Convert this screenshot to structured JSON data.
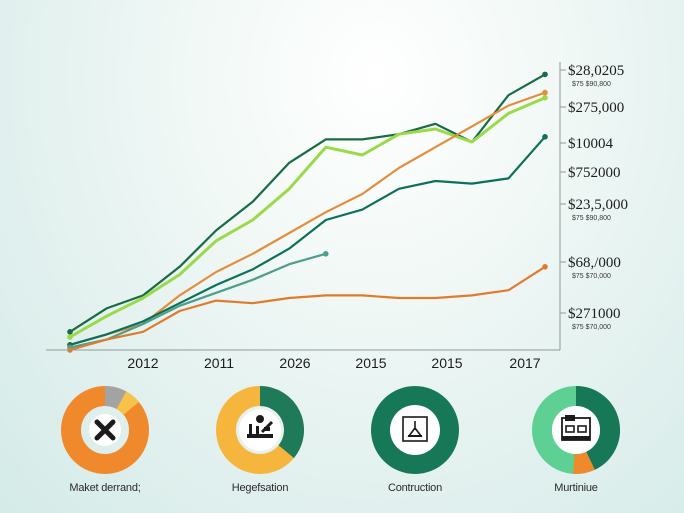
{
  "chart_data": {
    "type": "line",
    "x_tick_labels": [
      "2012",
      "2011",
      "2026",
      "2015",
      "2015",
      "2017"
    ],
    "y_tick_labels": [
      {
        "label": "$28,0205",
        "sub": "$75 $90,800"
      },
      {
        "label": "$275,000",
        "sub": ""
      },
      {
        "label": "$10004",
        "sub": ""
      },
      {
        "label": "$752000",
        "sub": ""
      },
      {
        "label": "$23,5,000",
        "sub": "$75 $90,800"
      },
      {
        "label": "$68,/000",
        "sub": "$75 $70,000"
      },
      {
        "label": "$271000",
        "sub": "$75 $70,000"
      }
    ],
    "ylim": [
      0,
      1
    ],
    "series": [
      {
        "color": "#176b45",
        "values": [
          0.07,
          0.16,
          0.21,
          0.32,
          0.46,
          0.57,
          0.72,
          0.81,
          0.81,
          0.83,
          0.87,
          0.8,
          0.98,
          1.06
        ]
      },
      {
        "color": "#9ad94a",
        "values": [
          0.05,
          0.13,
          0.2,
          0.29,
          0.42,
          0.5,
          0.62,
          0.78,
          0.75,
          0.83,
          0.85,
          0.8,
          0.91,
          0.97
        ]
      },
      {
        "color": "#e38e3c",
        "values": [
          0.02,
          0.06,
          0.1,
          0.21,
          0.3,
          0.37,
          0.45,
          0.53,
          0.6,
          0.7,
          0.78,
          0.86,
          0.94,
          0.99
        ]
      },
      {
        "color": "#0d7058",
        "values": [
          0.02,
          0.06,
          0.11,
          0.18,
          0.25,
          0.31,
          0.39,
          0.5,
          0.54,
          0.62,
          0.65,
          0.64,
          0.66,
          0.82
        ]
      },
      {
        "color": "#4e9e8b",
        "values": [
          0.01,
          0.04,
          0.1,
          0.17,
          0.22,
          0.27,
          0.33,
          0.37
        ]
      },
      {
        "color": "#e07a2e",
        "values": [
          0.0,
          0.04,
          0.07,
          0.15,
          0.19,
          0.18,
          0.2,
          0.21,
          0.21,
          0.2,
          0.2,
          0.21,
          0.23,
          0.32
        ]
      }
    ]
  },
  "categories": [
    {
      "label": "Maket derrand;",
      "icon": "x-icon",
      "ring": "#f0892b",
      "accent": "#a3a3a3",
      "accent_share": 0.08,
      "accent2": "#f6c24a",
      "accent2_share": 0.06
    },
    {
      "label": "Hegefsation",
      "icon": "construction-tools-icon",
      "ring": "#f6b53c",
      "accent": "#1f7a5a",
      "accent_share": 0.36
    },
    {
      "label": "Contruction",
      "icon": "crane-icon",
      "ring": "#177857",
      "accent": "#177857",
      "accent_share": 0
    },
    {
      "label": "Murtiniue",
      "icon": "house-icon",
      "ring": "#5fd093",
      "accent": "#177857",
      "accent_share": 0.43,
      "accent2": "#f0892b",
      "accent2_share": 0.08
    }
  ]
}
